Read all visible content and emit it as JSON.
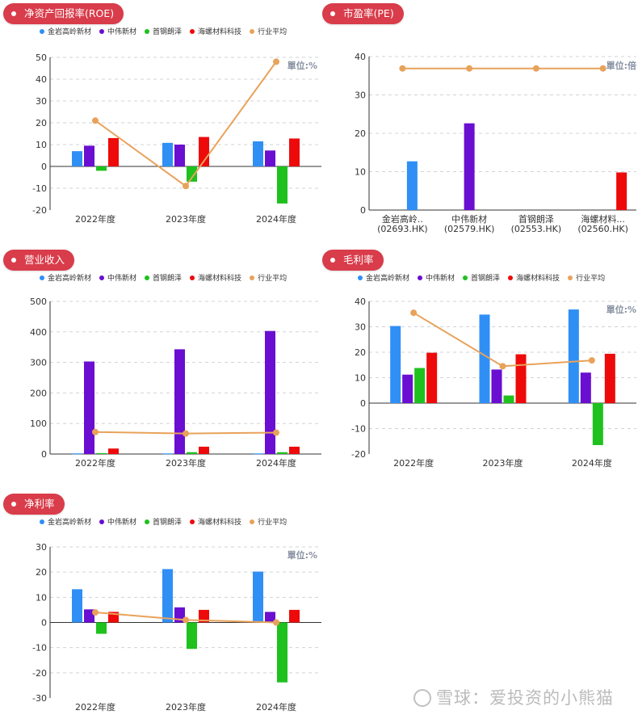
{
  "colors": {
    "series": [
      "#2f8ff5",
      "#6a0ed1",
      "#1ec11e",
      "#ee0a0a"
    ],
    "average": "#e8a25a",
    "badge": "#d93c4a"
  },
  "legend": {
    "series": [
      "金岩高岭新材",
      "中伟新材",
      "首钢朗泽",
      "海螺材料科技"
    ],
    "average": "行业平均"
  },
  "watermark": "雪球：爱投资的小熊猫",
  "panels": [
    {
      "id": "roe",
      "badge": "净资产回报率(ROE)",
      "unit": "單位:%",
      "chart_data": {
        "type": "bar",
        "categories": [
          "2022年度",
          "2023年度",
          "2024年度"
        ],
        "series": [
          {
            "name": "金岩高岭新材",
            "values": [
              7,
              10.8,
              11.5
            ]
          },
          {
            "name": "中伟新材",
            "values": [
              9.5,
              10,
              7.3
            ]
          },
          {
            "name": "首钢朗泽",
            "values": [
              -2,
              -7,
              -17
            ]
          },
          {
            "name": "海螺材料科技",
            "values": [
              13,
              13.5,
              12.8
            ]
          }
        ],
        "line": {
          "name": "行业平均",
          "values": [
            21,
            -9,
            48
          ]
        },
        "ylim": [
          -20,
          50
        ],
        "yticks": [
          "-20",
          "-10",
          "0",
          "10",
          "20",
          "30",
          "40",
          "50"
        ]
      }
    },
    {
      "id": "pe",
      "badge": "市盈率(PE)",
      "unit": "單位:倍",
      "chart_data": {
        "type": "bar",
        "categories": [
          "金岩高岭..|(02693.HK)",
          "中伟新材|(02579.HK)",
          "首钢朗泽|(02553.HK)",
          "海螺材料...|(02560.HK)"
        ],
        "values": [
          12.7,
          22.6,
          null,
          9.8
        ],
        "line": {
          "name": "行业平均",
          "values": [
            36.9,
            36.9,
            36.9,
            36.9
          ]
        },
        "ylim": [
          0,
          40
        ],
        "yticks": [
          "0",
          "10",
          "20",
          "30",
          "40"
        ]
      }
    },
    {
      "id": "revenue",
      "badge": "营业收入",
      "unit": "",
      "chart_data": {
        "type": "bar",
        "categories": [
          "2022年度",
          "2023年度",
          "2024年度"
        ],
        "series": [
          {
            "name": "金岩高岭新材",
            "values": [
              2,
              2,
              2
            ]
          },
          {
            "name": "中伟新材",
            "values": [
              303,
              343,
              403
            ]
          },
          {
            "name": "首钢朗泽",
            "values": [
              3,
              6,
              6
            ]
          },
          {
            "name": "海螺材料科技",
            "values": [
              18,
              24,
              24
            ]
          }
        ],
        "line": {
          "name": "行业平均",
          "values": [
            72,
            67,
            70
          ]
        },
        "ylim": [
          0,
          500
        ],
        "yticks": [
          "0",
          "100",
          "200",
          "300",
          "400",
          "500"
        ]
      }
    },
    {
      "id": "gross",
      "badge": "毛利率",
      "unit": "單位:%",
      "chart_data": {
        "type": "bar",
        "categories": [
          "2022年度",
          "2023年度",
          "2024年度"
        ],
        "series": [
          {
            "name": "金岩高岭新材",
            "values": [
              30.3,
              34.8,
              36.8
            ]
          },
          {
            "name": "中伟新材",
            "values": [
              11.2,
              13.2,
              12
            ]
          },
          {
            "name": "首钢朗泽",
            "values": [
              13.8,
              3,
              -16.5
            ]
          },
          {
            "name": "海螺材料科技",
            "values": [
              19.8,
              19.2,
              19.4
            ]
          }
        ],
        "line": {
          "name": "行业平均",
          "values": [
            35.5,
            14.5,
            16.8
          ]
        },
        "ylim": [
          -20,
          40
        ],
        "yticks": [
          "-20",
          "-10",
          "0",
          "10",
          "20",
          "30",
          "40"
        ]
      }
    },
    {
      "id": "net",
      "badge": "净利率",
      "unit": "單位:%",
      "chart_data": {
        "type": "bar",
        "categories": [
          "2022年度",
          "2023年度",
          "2024年度"
        ],
        "series": [
          {
            "name": "金岩高岭新材",
            "values": [
              13.2,
              21.2,
              20.2
            ]
          },
          {
            "name": "中伟新材",
            "values": [
              5.2,
              6,
              4.2
            ]
          },
          {
            "name": "首钢朗泽",
            "values": [
              -4.5,
              -10.5,
              -23.8
            ]
          },
          {
            "name": "海螺材料科技",
            "values": [
              4.2,
              5,
              5
            ]
          }
        ],
        "line": {
          "name": "行业平均",
          "values": [
            4,
            1,
            0
          ]
        },
        "ylim": [
          -30,
          30
        ],
        "yticks": [
          "-30",
          "-20",
          "-10",
          "0",
          "10",
          "20",
          "30"
        ]
      }
    }
  ]
}
